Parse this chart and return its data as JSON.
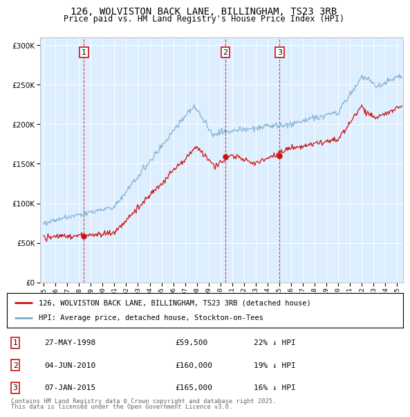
{
  "title": "126, WOLVISTON BACK LANE, BILLINGHAM, TS23 3RB",
  "subtitle": "Price paid vs. HM Land Registry's House Price Index (HPI)",
  "legend_line1": "126, WOLVISTON BACK LANE, BILLINGHAM, TS23 3RB (detached house)",
  "legend_line2": "HPI: Average price, detached house, Stockton-on-Tees",
  "transactions": [
    {
      "num": 1,
      "date": "27-MAY-1998",
      "price": 59500,
      "pct": "22%",
      "year": 1998.41
    },
    {
      "num": 2,
      "date": "04-JUN-2010",
      "price": 160000,
      "pct": "19%",
      "year": 2010.42
    },
    {
      "num": 3,
      "date": "07-JAN-2015",
      "price": 165000,
      "pct": "16%",
      "year": 2015.02
    }
  ],
  "footnote1": "Contains HM Land Registry data © Crown copyright and database right 2025.",
  "footnote2": "This data is licensed under the Open Government Licence v3.0.",
  "hpi_color": "#7aadd4",
  "price_color": "#cc1111",
  "transaction_color": "#cc1111",
  "background_color": "#ddeeff",
  "ylim": [
    0,
    310000
  ],
  "yticks": [
    0,
    50000,
    100000,
    150000,
    200000,
    250000,
    300000
  ],
  "xlim_start": 1994.7,
  "xlim_end": 2025.5
}
